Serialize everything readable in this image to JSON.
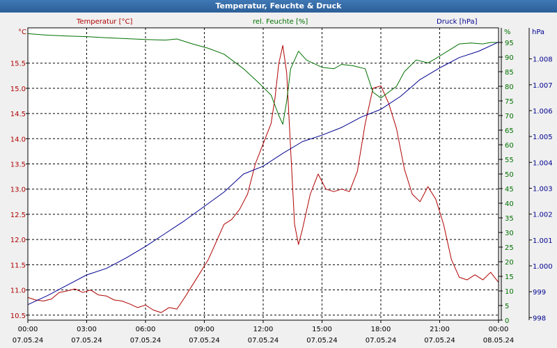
{
  "window": {
    "title": "Temperatur, Feuchte & Druck"
  },
  "chart_data": {
    "type": "line",
    "title": "Temperatur, Feuchte & Druck",
    "grid": true,
    "x_ticks": [
      {
        "time": "00:00",
        "date": "07.05.24"
      },
      {
        "time": "03:00",
        "date": "07.05.24"
      },
      {
        "time": "06:00",
        "date": "07.05.24"
      },
      {
        "time": "09:00",
        "date": "07.05.24"
      },
      {
        "time": "12:00",
        "date": "07.05.24"
      },
      {
        "time": "15:00",
        "date": "07.05.24"
      },
      {
        "time": "18:00",
        "date": "07.05.24"
      },
      {
        "time": "21:00",
        "date": "07.05.24"
      },
      {
        "time": "00:00",
        "date": "08.05.24"
      }
    ],
    "x_range_hours": [
      0,
      24
    ],
    "axes": {
      "temperature": {
        "label": "Temperatur [°C]",
        "unit": "°C",
        "color": "#b00000",
        "range": [
          10.4,
          16.2
        ],
        "ticks": [
          "10.5",
          "11.0",
          "11.5",
          "12.0",
          "12.5",
          "13.0",
          "13.5",
          "14.0",
          "14.5",
          "15.0",
          "15.5"
        ]
      },
      "humidity": {
        "label": "rel. Feuchte [%]",
        "unit": "%",
        "color": "#007000",
        "range": [
          0,
          100
        ],
        "ticks": [
          "0",
          "5",
          "10",
          "15",
          "20",
          "25",
          "30",
          "35",
          "40",
          "45",
          "50",
          "55",
          "60",
          "65",
          "70",
          "75",
          "80",
          "85",
          "90",
          "95"
        ]
      },
      "pressure": {
        "label": "Druck [hPa]",
        "unit": "hPa",
        "color": "#000090",
        "range": [
          997.9,
          1009.2
        ],
        "ticks": [
          "998",
          "999",
          "1.000",
          "1.001",
          "1.002",
          "1.003",
          "1.004",
          "1.005",
          "1.006",
          "1.007",
          "1.008"
        ]
      }
    },
    "series": [
      {
        "name": "Temperatur [°C]",
        "axis": "temperature",
        "color": "#b00000",
        "points": [
          [
            0,
            10.85
          ],
          [
            0.4,
            10.8
          ],
          [
            0.8,
            10.78
          ],
          [
            1.2,
            10.82
          ],
          [
            1.6,
            10.95
          ],
          [
            2.0,
            10.98
          ],
          [
            2.4,
            11.02
          ],
          [
            2.8,
            10.95
          ],
          [
            3.2,
            11.0
          ],
          [
            3.6,
            10.9
          ],
          [
            4.0,
            10.88
          ],
          [
            4.4,
            10.8
          ],
          [
            4.8,
            10.78
          ],
          [
            5.2,
            10.72
          ],
          [
            5.6,
            10.65
          ],
          [
            6.0,
            10.7
          ],
          [
            6.4,
            10.6
          ],
          [
            6.8,
            10.55
          ],
          [
            7.2,
            10.65
          ],
          [
            7.6,
            10.62
          ],
          [
            8.0,
            10.85
          ],
          [
            8.4,
            11.1
          ],
          [
            8.8,
            11.35
          ],
          [
            9.2,
            11.6
          ],
          [
            9.6,
            11.95
          ],
          [
            10.0,
            12.3
          ],
          [
            10.4,
            12.4
          ],
          [
            10.8,
            12.6
          ],
          [
            11.2,
            12.9
          ],
          [
            11.6,
            13.5
          ],
          [
            12.0,
            13.9
          ],
          [
            12.4,
            14.3
          ],
          [
            12.6,
            14.8
          ],
          [
            12.8,
            15.5
          ],
          [
            13.0,
            15.85
          ],
          [
            13.2,
            15.3
          ],
          [
            13.4,
            13.8
          ],
          [
            13.6,
            12.3
          ],
          [
            13.8,
            11.9
          ],
          [
            14.0,
            12.2
          ],
          [
            14.4,
            12.9
          ],
          [
            14.8,
            13.3
          ],
          [
            15.2,
            13.0
          ],
          [
            15.6,
            12.95
          ],
          [
            16.0,
            13.0
          ],
          [
            16.4,
            12.95
          ],
          [
            16.8,
            13.35
          ],
          [
            17.2,
            14.3
          ],
          [
            17.6,
            15.0
          ],
          [
            18.0,
            15.05
          ],
          [
            18.4,
            14.7
          ],
          [
            18.8,
            14.2
          ],
          [
            19.2,
            13.4
          ],
          [
            19.6,
            12.9
          ],
          [
            20.0,
            12.75
          ],
          [
            20.4,
            13.05
          ],
          [
            20.8,
            12.8
          ],
          [
            21.2,
            12.3
          ],
          [
            21.6,
            11.6
          ],
          [
            22.0,
            11.25
          ],
          [
            22.4,
            11.2
          ],
          [
            22.8,
            11.3
          ],
          [
            23.2,
            11.2
          ],
          [
            23.6,
            11.35
          ],
          [
            24.0,
            11.15
          ]
        ]
      },
      {
        "name": "rel. Feuchte [%]",
        "axis": "humidity",
        "color": "#007000",
        "points": [
          [
            0,
            98
          ],
          [
            1,
            97.5
          ],
          [
            2,
            97.2
          ],
          [
            3,
            97.0
          ],
          [
            4,
            96.6
          ],
          [
            5,
            96.3
          ],
          [
            6,
            96.0
          ],
          [
            7,
            95.8
          ],
          [
            7.6,
            96.2
          ],
          [
            8.4,
            94.5
          ],
          [
            9.2,
            93.0
          ],
          [
            10.0,
            91.0
          ],
          [
            11.0,
            86.0
          ],
          [
            11.8,
            81.0
          ],
          [
            12.4,
            77.0
          ],
          [
            12.8,
            70.0
          ],
          [
            13.0,
            67.0
          ],
          [
            13.2,
            75.0
          ],
          [
            13.4,
            86.0
          ],
          [
            13.8,
            92.0
          ],
          [
            14.2,
            89.0
          ],
          [
            15.0,
            86.5
          ],
          [
            15.6,
            86.0
          ],
          [
            16.0,
            87.5
          ],
          [
            16.6,
            87.0
          ],
          [
            17.2,
            86.0
          ],
          [
            17.6,
            78.0
          ],
          [
            18.0,
            76.0
          ],
          [
            18.4,
            78.0
          ],
          [
            18.8,
            80.0
          ],
          [
            19.2,
            85.0
          ],
          [
            19.8,
            89.0
          ],
          [
            20.4,
            88.0
          ],
          [
            20.8,
            89.5
          ],
          [
            21.4,
            92.0
          ],
          [
            22.0,
            94.5
          ],
          [
            22.6,
            94.8
          ],
          [
            23.2,
            94.5
          ],
          [
            23.6,
            95.0
          ],
          [
            24.0,
            95.0
          ]
        ]
      },
      {
        "name": "Druck [hPa]",
        "axis": "pressure",
        "color": "#000090",
        "points": [
          [
            0,
            998.5
          ],
          [
            1,
            998.85
          ],
          [
            2,
            999.25
          ],
          [
            3,
            999.65
          ],
          [
            4,
            999.9
          ],
          [
            5,
            1000.3
          ],
          [
            6,
            1000.75
          ],
          [
            7,
            1001.25
          ],
          [
            8,
            1001.75
          ],
          [
            9,
            1002.3
          ],
          [
            10,
            1002.85
          ],
          [
            11,
            1003.55
          ],
          [
            12,
            1003.85
          ],
          [
            13,
            1004.35
          ],
          [
            14,
            1004.8
          ],
          [
            15,
            1005.05
          ],
          [
            16,
            1005.35
          ],
          [
            17,
            1005.75
          ],
          [
            18,
            1006.05
          ],
          [
            19,
            1006.55
          ],
          [
            20,
            1007.2
          ],
          [
            21,
            1007.65
          ],
          [
            22,
            1008.05
          ],
          [
            23,
            1008.3
          ],
          [
            24,
            1008.65
          ]
        ]
      }
    ]
  }
}
